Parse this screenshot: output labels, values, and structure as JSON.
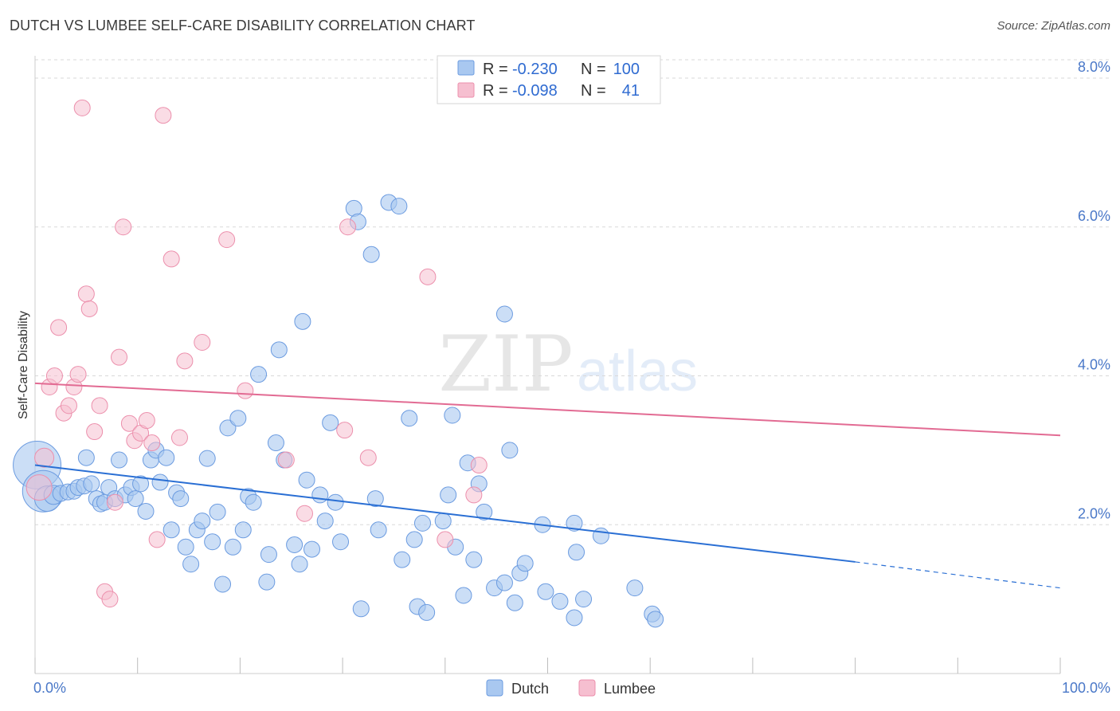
{
  "header": {
    "title": "DUTCH VS LUMBEE SELF-CARE DISABILITY CORRELATION CHART",
    "source": "Source: ZipAtlas.com"
  },
  "watermark": {
    "zip": "ZIP",
    "atlas": "atlas"
  },
  "colors": {
    "dutch_fill": "#a9c8f0",
    "dutch_stroke": "#6b9be0",
    "dutch_line": "#2a6fd4",
    "lumbee_fill": "#f6bfd0",
    "lumbee_stroke": "#ec8fac",
    "lumbee_line": "#e26b93",
    "tick_label": "#4a78c8",
    "grid": "#d9d9d9"
  },
  "legend": {
    "rows": [
      {
        "r_label": "R =",
        "r_value": "-0.230",
        "n_label": "N =",
        "n_value": "100"
      },
      {
        "r_label": "R =",
        "r_value": "-0.098",
        "n_label": "N =",
        "n_value": "41"
      }
    ]
  },
  "chart_data": {
    "type": "scatter",
    "title": "DUTCH VS LUMBEE SELF-CARE DISABILITY CORRELATION CHART",
    "xlabel": "",
    "ylabel": "Self-Care Disability",
    "xlim": [
      0,
      100
    ],
    "ylim": [
      0,
      8.3
    ],
    "x_tick_labels": [
      "0.0%",
      "100.0%"
    ],
    "y_ticks": [
      2,
      4,
      6,
      8
    ],
    "y_tick_labels": [
      "2.0%",
      "4.0%",
      "6.0%",
      "8.0%"
    ],
    "grid": true,
    "legend_position": "top-center",
    "series": [
      {
        "name": "Dutch",
        "r": -0.23,
        "n": 100,
        "trend": {
          "x0": 0,
          "y0": 2.8,
          "x1": 80,
          "y1": 1.5,
          "dashed_to_x": 100,
          "dashed_to_y": 1.15
        },
        "points": [
          [
            0.2,
            2.8,
            30
          ],
          [
            0.8,
            2.45,
            26
          ],
          [
            1.2,
            2.35,
            16
          ],
          [
            1.8,
            2.4,
            12
          ],
          [
            2.5,
            2.42,
            10
          ],
          [
            3.2,
            2.44,
            10
          ],
          [
            3.8,
            2.45,
            10
          ],
          [
            4.2,
            2.5,
            10
          ],
          [
            4.8,
            2.52,
            10
          ],
          [
            5.0,
            2.9,
            10
          ],
          [
            5.5,
            2.55,
            10
          ],
          [
            6.0,
            2.35,
            10
          ],
          [
            6.4,
            2.28,
            10
          ],
          [
            6.8,
            2.3,
            10
          ],
          [
            7.2,
            2.5,
            10
          ],
          [
            7.8,
            2.35,
            10
          ],
          [
            8.2,
            2.87,
            10
          ],
          [
            8.8,
            2.4,
            10
          ],
          [
            9.4,
            2.5,
            10
          ],
          [
            9.8,
            2.35,
            10
          ],
          [
            10.3,
            2.55,
            10
          ],
          [
            10.8,
            2.18,
            10
          ],
          [
            11.3,
            2.87,
            10
          ],
          [
            11.8,
            3.0,
            10
          ],
          [
            12.2,
            2.57,
            10
          ],
          [
            12.8,
            2.9,
            10
          ],
          [
            13.3,
            1.93,
            10
          ],
          [
            13.8,
            2.43,
            10
          ],
          [
            14.2,
            2.35,
            10
          ],
          [
            14.7,
            1.7,
            10
          ],
          [
            15.2,
            1.47,
            10
          ],
          [
            15.8,
            1.93,
            10
          ],
          [
            16.3,
            2.05,
            10
          ],
          [
            16.8,
            2.89,
            10
          ],
          [
            17.3,
            1.77,
            10
          ],
          [
            17.8,
            2.17,
            10
          ],
          [
            18.3,
            1.2,
            10
          ],
          [
            18.8,
            3.3,
            10
          ],
          [
            19.3,
            1.7,
            10
          ],
          [
            19.8,
            3.43,
            10
          ],
          [
            20.3,
            1.93,
            10
          ],
          [
            20.8,
            2.38,
            10
          ],
          [
            21.3,
            2.3,
            10
          ],
          [
            21.8,
            4.02,
            10
          ],
          [
            22.8,
            1.6,
            10
          ],
          [
            22.6,
            1.23,
            10
          ],
          [
            23.5,
            3.1,
            10
          ],
          [
            23.8,
            4.35,
            10
          ],
          [
            24.3,
            2.87,
            10
          ],
          [
            25.3,
            1.73,
            10
          ],
          [
            25.8,
            1.47,
            10
          ],
          [
            26.1,
            4.73,
            10
          ],
          [
            26.5,
            2.6,
            10
          ],
          [
            27.0,
            1.67,
            10
          ],
          [
            27.8,
            2.4,
            10
          ],
          [
            28.3,
            2.05,
            10
          ],
          [
            28.8,
            3.37,
            10
          ],
          [
            29.3,
            2.3,
            10
          ],
          [
            29.8,
            1.77,
            10
          ],
          [
            31.1,
            6.25,
            10
          ],
          [
            31.5,
            6.07,
            10
          ],
          [
            31.8,
            0.87,
            10
          ],
          [
            32.8,
            5.63,
            10
          ],
          [
            33.2,
            2.35,
            10
          ],
          [
            33.5,
            1.93,
            10
          ],
          [
            34.5,
            6.33,
            10
          ],
          [
            35.5,
            6.28,
            10
          ],
          [
            35.8,
            1.53,
            10
          ],
          [
            36.5,
            3.43,
            10
          ],
          [
            37.0,
            1.8,
            10
          ],
          [
            37.3,
            0.9,
            10
          ],
          [
            37.8,
            2.02,
            10
          ],
          [
            38.2,
            0.82,
            10
          ],
          [
            39.8,
            2.05,
            10
          ],
          [
            40.3,
            2.4,
            10
          ],
          [
            40.7,
            3.47,
            10
          ],
          [
            41.0,
            1.7,
            10
          ],
          [
            41.8,
            1.05,
            10
          ],
          [
            42.2,
            2.83,
            10
          ],
          [
            42.8,
            1.53,
            10
          ],
          [
            43.3,
            2.55,
            10
          ],
          [
            43.8,
            2.17,
            10
          ],
          [
            44.8,
            1.15,
            10
          ],
          [
            45.8,
            4.83,
            10
          ],
          [
            45.8,
            1.22,
            10
          ],
          [
            46.3,
            3.0,
            10
          ],
          [
            46.8,
            0.95,
            10
          ],
          [
            47.3,
            1.35,
            10
          ],
          [
            47.8,
            1.48,
            10
          ],
          [
            49.5,
            2.0,
            10
          ],
          [
            49.8,
            1.1,
            10
          ],
          [
            51.2,
            0.97,
            10
          ],
          [
            52.6,
            2.02,
            10
          ],
          [
            52.6,
            0.75,
            10
          ],
          [
            52.8,
            1.63,
            10
          ],
          [
            53.5,
            1.0,
            10
          ],
          [
            55.2,
            1.85,
            10
          ],
          [
            58.5,
            1.15,
            10
          ],
          [
            60.2,
            0.8,
            10
          ],
          [
            60.5,
            0.73,
            10
          ]
        ]
      },
      {
        "name": "Lumbee",
        "r": -0.098,
        "n": 41,
        "trend": {
          "x0": 0,
          "y0": 3.9,
          "x1": 100,
          "y1": 3.2
        },
        "points": [
          [
            0.4,
            2.5,
            16
          ],
          [
            0.9,
            2.9,
            12
          ],
          [
            1.4,
            3.85,
            10
          ],
          [
            1.9,
            4.0,
            10
          ],
          [
            2.3,
            4.65,
            10
          ],
          [
            2.8,
            3.5,
            10
          ],
          [
            3.3,
            3.6,
            10
          ],
          [
            3.8,
            3.85,
            10
          ],
          [
            4.2,
            4.02,
            10
          ],
          [
            4.6,
            7.6,
            10
          ],
          [
            5.0,
            5.1,
            10
          ],
          [
            5.3,
            4.9,
            10
          ],
          [
            5.8,
            3.25,
            10
          ],
          [
            6.3,
            3.6,
            10
          ],
          [
            6.8,
            1.1,
            10
          ],
          [
            7.3,
            1.0,
            10
          ],
          [
            7.8,
            2.3,
            10
          ],
          [
            8.2,
            4.25,
            10
          ],
          [
            8.6,
            6.0,
            10
          ],
          [
            9.2,
            3.36,
            10
          ],
          [
            9.7,
            3.13,
            10
          ],
          [
            10.3,
            3.23,
            10
          ],
          [
            10.9,
            3.4,
            10
          ],
          [
            11.4,
            3.1,
            10
          ],
          [
            11.9,
            1.8,
            10
          ],
          [
            12.5,
            7.5,
            10
          ],
          [
            13.3,
            5.57,
            10
          ],
          [
            14.1,
            3.17,
            10
          ],
          [
            14.6,
            4.2,
            10
          ],
          [
            16.3,
            4.45,
            10
          ],
          [
            18.7,
            5.83,
            10
          ],
          [
            20.5,
            3.8,
            10
          ],
          [
            24.5,
            2.87,
            10
          ],
          [
            26.3,
            2.15,
            10
          ],
          [
            30.5,
            6.0,
            10
          ],
          [
            30.2,
            3.27,
            10
          ],
          [
            32.5,
            2.9,
            10
          ],
          [
            38.3,
            5.33,
            10
          ],
          [
            40.0,
            1.8,
            10
          ],
          [
            42.8,
            2.4,
            10
          ],
          [
            43.3,
            2.8,
            10
          ]
        ]
      }
    ]
  },
  "bottom_legend": {
    "dutch": "Dutch",
    "lumbee": "Lumbee"
  }
}
